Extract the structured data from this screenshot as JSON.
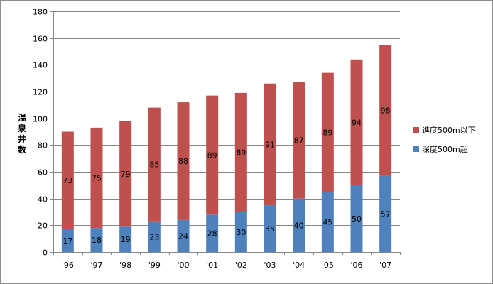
{
  "chart_data": {
    "type": "bar",
    "stacked": true,
    "title": "",
    "xlabel": "",
    "ylabel": "温泉井数",
    "ylim": [
      0,
      180
    ],
    "yticks": [
      0,
      20,
      40,
      60,
      80,
      100,
      120,
      140,
      160,
      180
    ],
    "categories": [
      "'96",
      "'97",
      "'98",
      "'99",
      "'00",
      "'01",
      "'02",
      "'03",
      "'04",
      "'05",
      "'06",
      "'07"
    ],
    "series": [
      {
        "name": "深度500m超",
        "color": "#4f81bd",
        "values": [
          17,
          18,
          19,
          23,
          24,
          28,
          30,
          35,
          40,
          45,
          50,
          57
        ]
      },
      {
        "name": "進度500m以下",
        "color": "#c0504d",
        "values": [
          73,
          75,
          79,
          85,
          88,
          89,
          89,
          91,
          87,
          89,
          94,
          98
        ]
      }
    ],
    "legend_position": "right",
    "grid": true
  }
}
